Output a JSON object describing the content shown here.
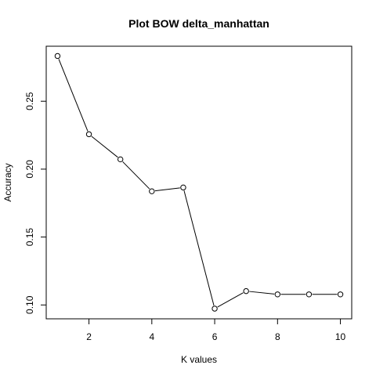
{
  "chart_data": {
    "type": "line",
    "title": "Plot BOW delta_manhattan",
    "xlabel": "K values",
    "ylabel": "Accuracy",
    "x": [
      1,
      2,
      3,
      4,
      5,
      6,
      7,
      8,
      9,
      10
    ],
    "series": [
      {
        "values": [
          0.2833,
          0.2257,
          0.2072,
          0.1837,
          0.1865,
          0.0973,
          0.1102,
          0.1078,
          0.1078,
          0.1078
        ]
      }
    ],
    "xlim": [
      0.64,
      10.36
    ],
    "ylim": [
      0.0898,
      0.2905
    ],
    "xticks": [
      2,
      4,
      6,
      8,
      10
    ],
    "yticks": [
      0.1,
      0.15,
      0.2,
      0.25
    ],
    "xtick_labels": [
      "2",
      "4",
      "6",
      "8",
      "10"
    ],
    "ytick_labels": [
      "0.10",
      "0.15",
      "0.20",
      "0.25"
    ],
    "grid": false,
    "line_color": "#000000",
    "marker": "open-circle"
  }
}
